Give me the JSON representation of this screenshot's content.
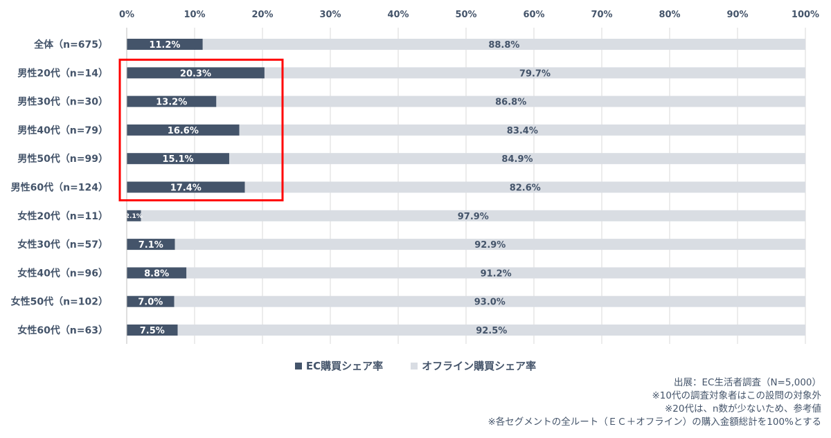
{
  "chart_data": {
    "type": "bar",
    "orientation": "horizontal",
    "stacked": true,
    "percent_stacked": true,
    "categories": [
      "全体（n=675）",
      "男性20代（n=14）",
      "男性30代（n=30）",
      "男性40代（n=79）",
      "男性50代（n=99）",
      "男性60代（n=124）",
      "女性20代（n=11）",
      "女性30代（n=57）",
      "女性40代（n=96）",
      "女性50代（n=102）",
      "女性60代（n=63）"
    ],
    "series": [
      {
        "name": "EC購買シェア率",
        "color": "#44546a",
        "values": [
          11.2,
          20.3,
          13.2,
          16.6,
          15.1,
          17.4,
          2.1,
          7.1,
          8.8,
          7.0,
          7.5
        ],
        "labels": [
          "11.2%",
          "20.3%",
          "13.2%",
          "16.6%",
          "15.1%",
          "17.4%",
          "2.1%",
          "7.1%",
          "8.8%",
          "7.0%",
          "7.5%"
        ]
      },
      {
        "name": "オフライン購買シェア率",
        "color": "#d9dde3",
        "values": [
          88.8,
          79.7,
          86.8,
          83.4,
          84.9,
          82.6,
          97.9,
          92.9,
          91.2,
          93.0,
          92.5
        ],
        "labels": [
          "88.8%",
          "79.7%",
          "86.8%",
          "83.4%",
          "84.9%",
          "82.6%",
          "97.9%",
          "92.9%",
          "91.2%",
          "93.0%",
          "92.5%"
        ]
      }
    ],
    "x_ticks": [
      "0%",
      "10%",
      "20%",
      "30%",
      "40%",
      "50%",
      "60%",
      "70%",
      "80%",
      "90%",
      "100%"
    ],
    "xlim": [
      0,
      100
    ],
    "x_axis_position": "top",
    "grid": true,
    "legend_position": "bottom",
    "highlight": {
      "color": "#ff0000",
      "categories_from": 1,
      "categories_to": 5
    }
  },
  "notes": [
    "出展：EC生活者調査（N=5,000）",
    "※10代の調査対象者はこの設問の対象外",
    "※20代は、n数が少ないため、参考値",
    "※各セグメントの全ルート（ＥＣ＋オフライン）の購入金額総計を100%とする"
  ]
}
